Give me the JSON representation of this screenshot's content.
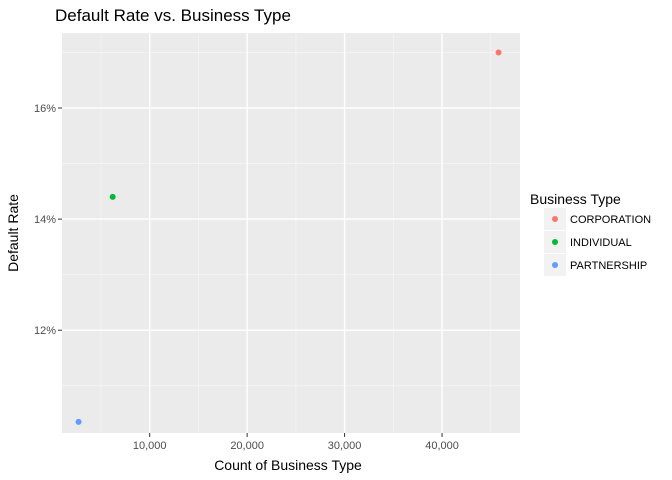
{
  "chart_data": {
    "type": "scatter",
    "title": "Default Rate vs. Business Type",
    "xlabel": "Count of Business Type",
    "ylabel": "Default Rate",
    "xlim": [
      1000,
      48000
    ],
    "ylim": [
      0.1015,
      0.1735
    ],
    "x_ticks": [
      10000,
      20000,
      30000,
      40000
    ],
    "x_tick_labels": [
      "10,000",
      "20,000",
      "30,000",
      "40,000"
    ],
    "y_ticks": [
      0.12,
      0.14,
      0.16
    ],
    "y_tick_labels": [
      "12%",
      "14%",
      "16%"
    ],
    "grid": true,
    "legend": {
      "title": "Business Type",
      "position": "right"
    },
    "series": [
      {
        "name": "CORPORATION",
        "color": "#F8766D",
        "points": [
          {
            "x": 45800,
            "y": 0.17
          }
        ]
      },
      {
        "name": "INDIVIDUAL",
        "color": "#00BA38",
        "points": [
          {
            "x": 6200,
            "y": 0.144
          }
        ]
      },
      {
        "name": "PARTNERSHIP",
        "color": "#619CFF",
        "points": [
          {
            "x": 2700,
            "y": 0.1035
          }
        ]
      }
    ]
  }
}
